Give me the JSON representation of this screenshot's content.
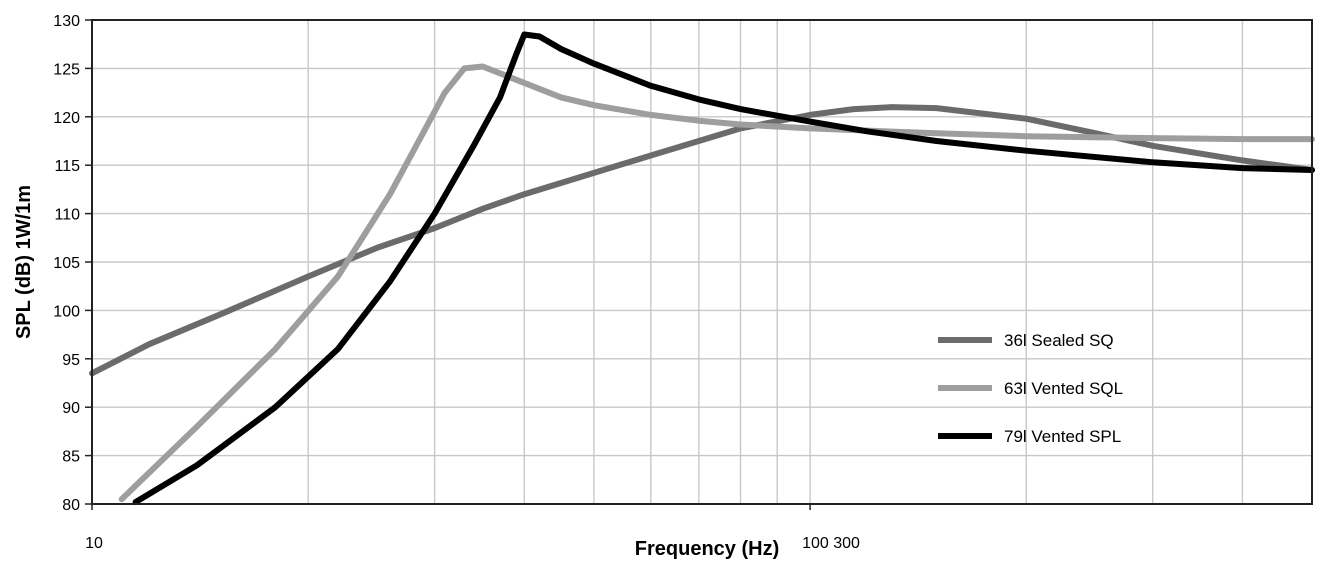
{
  "chart_data": {
    "type": "line",
    "title": "",
    "xlabel": "Frequency (Hz)",
    "ylabel": "SPL (dB) 1W/1m",
    "x_scale": "log",
    "xlim": [
      10,
      500
    ],
    "ylim": [
      80,
      130
    ],
    "y_ticks": [
      80,
      85,
      90,
      95,
      100,
      105,
      110,
      115,
      120,
      125,
      130
    ],
    "x_tick_labels": [
      "10",
      "100 300"
    ],
    "grid": true,
    "legend_position": "right",
    "series": [
      {
        "name": "36l Sealed SQ",
        "color": "#6b6b6b",
        "x": [
          10,
          12,
          15,
          20,
          25,
          30,
          35,
          40,
          50,
          60,
          70,
          80,
          100,
          115,
          130,
          150,
          200,
          250,
          300,
          400,
          500
        ],
        "y": [
          93.5,
          96.5,
          99.5,
          103.5,
          106.5,
          108.5,
          110.5,
          112,
          114.2,
          116,
          117.5,
          118.8,
          120.2,
          120.8,
          121,
          120.9,
          119.8,
          118.3,
          117,
          115.5,
          114.5
        ]
      },
      {
        "name": "63l Vented SQL",
        "color": "#9e9e9e",
        "x": [
          11,
          14,
          18,
          22,
          26,
          29,
          31,
          33,
          35,
          40,
          45,
          50,
          60,
          70,
          80,
          100,
          150,
          200,
          300,
          400,
          500
        ],
        "y": [
          80.5,
          88,
          96,
          103.5,
          112,
          118.5,
          122.5,
          125,
          125.2,
          123.5,
          122,
          121.2,
          120.2,
          119.6,
          119.2,
          118.8,
          118.3,
          118,
          117.8,
          117.7,
          117.7
        ]
      },
      {
        "name": "79l Vented SPL",
        "color": "#000000",
        "x": [
          11.5,
          14,
          18,
          22,
          26,
          30,
          34,
          37,
          39,
          40,
          42,
          45,
          50,
          60,
          70,
          80,
          100,
          120,
          150,
          200,
          300,
          400,
          500
        ],
        "y": [
          80.2,
          84,
          90,
          96,
          103,
          110,
          117,
          122,
          126.5,
          128.5,
          128.3,
          127,
          125.5,
          123.2,
          121.8,
          120.8,
          119.5,
          118.5,
          117.5,
          116.5,
          115.3,
          114.7,
          114.5
        ]
      }
    ]
  }
}
